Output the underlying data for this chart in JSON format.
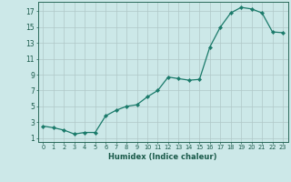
{
  "x": [
    0,
    1,
    2,
    3,
    4,
    5,
    6,
    7,
    8,
    9,
    10,
    11,
    12,
    13,
    14,
    15,
    16,
    17,
    18,
    19,
    20,
    21,
    22,
    23
  ],
  "y": [
    2.5,
    2.3,
    2.0,
    1.5,
    1.7,
    1.7,
    3.8,
    4.5,
    5.0,
    5.2,
    6.2,
    7.0,
    8.7,
    8.5,
    8.3,
    8.4,
    12.5,
    15.0,
    16.8,
    17.5,
    17.3,
    16.8,
    14.4,
    14.3
  ],
  "line_color": "#1a7a6a",
  "marker": "D",
  "marker_size": 2.2,
  "bg_color": "#cce8e8",
  "grid_color": "#b0c8c8",
  "xlabel": "Humidex (Indice chaleur)",
  "ylabel_ticks": [
    1,
    3,
    5,
    7,
    9,
    11,
    13,
    15,
    17
  ],
  "xtick_labels": [
    "0",
    "1",
    "2",
    "3",
    "4",
    "5",
    "6",
    "7",
    "8",
    "9",
    "10",
    "11",
    "12",
    "13",
    "14",
    "15",
    "16",
    "17",
    "18",
    "19",
    "20",
    "21",
    "22",
    "23"
  ],
  "ylim": [
    0.5,
    18.2
  ],
  "xlim": [
    -0.5,
    23.5
  ],
  "axis_color": "#2a6a5a",
  "font_color": "#1a5a4a"
}
